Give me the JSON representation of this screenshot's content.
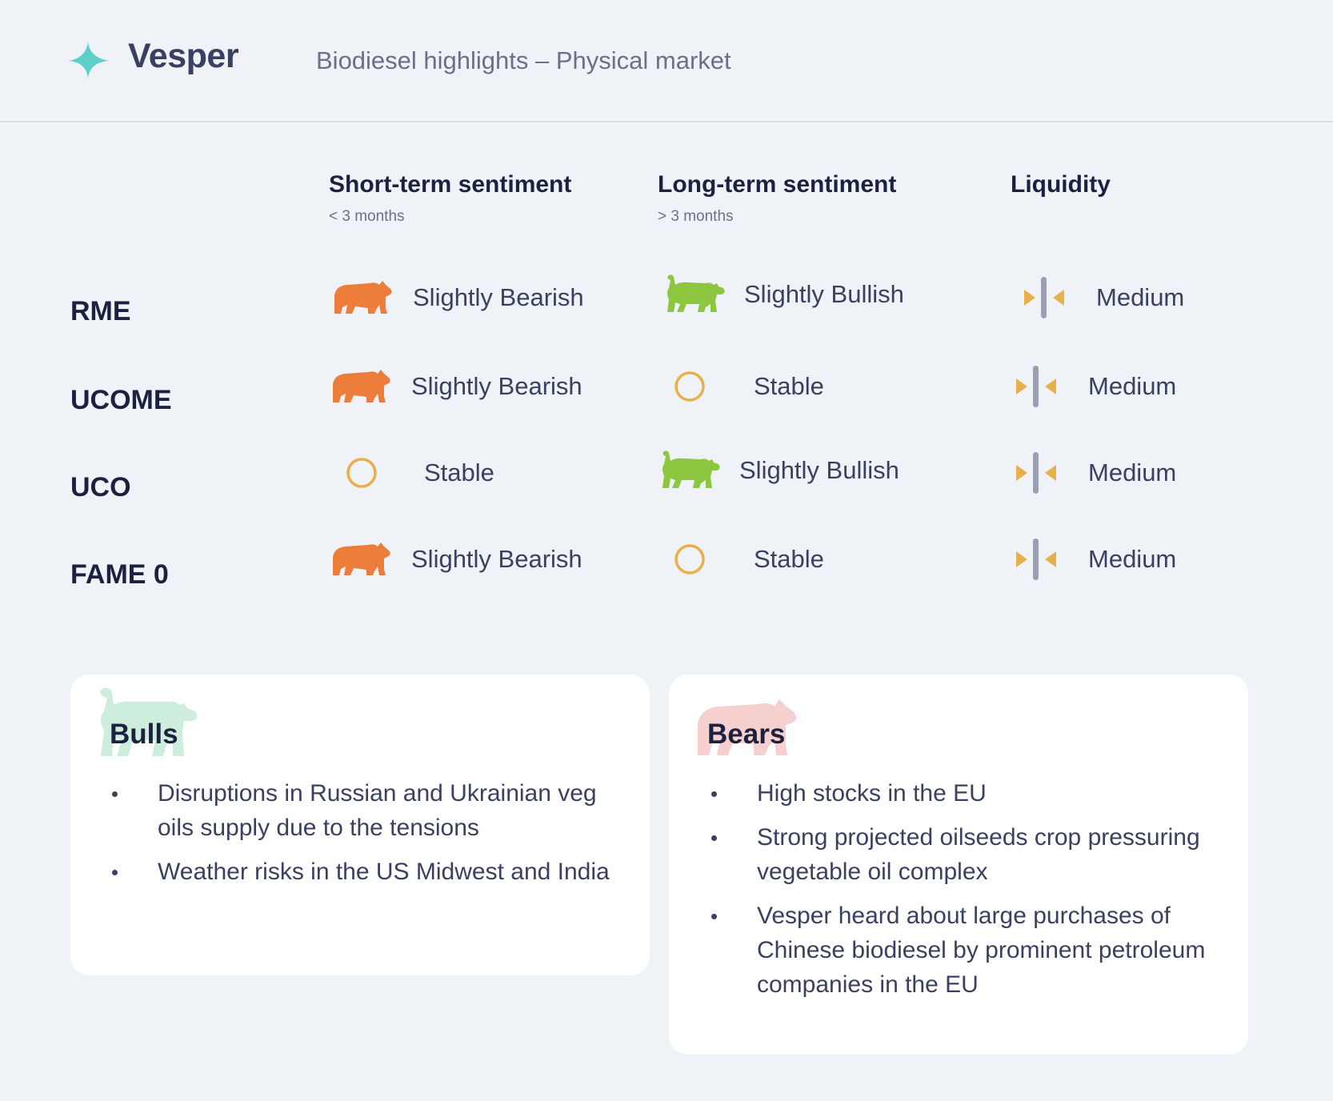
{
  "header": {
    "brand": "Vesper",
    "title": "Biodiesel highlights – Physical market"
  },
  "columns": [
    {
      "title": "Short-term sentiment",
      "subtitle": "< 3 months"
    },
    {
      "title": "Long-term sentiment",
      "subtitle": "> 3 months"
    },
    {
      "title": "Liquidity",
      "subtitle": ""
    }
  ],
  "rows": [
    {
      "label": "RME",
      "short_term": {
        "icon": "bear-icon",
        "text": "Slightly Bearish"
      },
      "long_term": {
        "icon": "bull-icon",
        "text": "Slightly Bullish"
      },
      "liquidity": {
        "icon": "liquidity-medium-icon",
        "text": "Medium"
      }
    },
    {
      "label": "UCOME",
      "short_term": {
        "icon": "bear-icon",
        "text": "Slightly Bearish"
      },
      "long_term": {
        "icon": "stable-icon",
        "text": "Stable"
      },
      "liquidity": {
        "icon": "liquidity-medium-icon",
        "text": "Medium"
      }
    },
    {
      "label": "UCO",
      "short_term": {
        "icon": "stable-icon",
        "text": "Stable"
      },
      "long_term": {
        "icon": "bull-icon",
        "text": "Slightly Bullish"
      },
      "liquidity": {
        "icon": "liquidity-medium-icon",
        "text": "Medium"
      }
    },
    {
      "label": "FAME 0",
      "short_term": {
        "icon": "bear-icon",
        "text": "Slightly Bearish"
      },
      "long_term": {
        "icon": "stable-icon",
        "text": "Stable"
      },
      "liquidity": {
        "icon": "liquidity-medium-icon",
        "text": "Medium"
      }
    }
  ],
  "bulls": {
    "title": "Bulls",
    "items": [
      "Disruptions in Russian and Ukrainian veg oils supply due to the tensions",
      "Weather risks in the US Midwest and India"
    ]
  },
  "bears": {
    "title": "Bears",
    "items": [
      "High stocks in the EU",
      "Strong projected oilseeds crop pressuring vegetable oil complex",
      "Vesper heard about large purchases of Chinese biodiesel by prominent petroleum companies in the EU"
    ]
  },
  "colors": {
    "background": "#eff2f7",
    "bear": "#ed7d3a",
    "bull": "#8dc63f",
    "stable": "#e8b04a",
    "liquidity_arrow": "#e8b04a",
    "liquidity_bar": "#9aa0b4",
    "bull_watermark": "#cdeedd",
    "bear_watermark": "#f6cfcf",
    "accent_star": "#5ccfc8"
  }
}
